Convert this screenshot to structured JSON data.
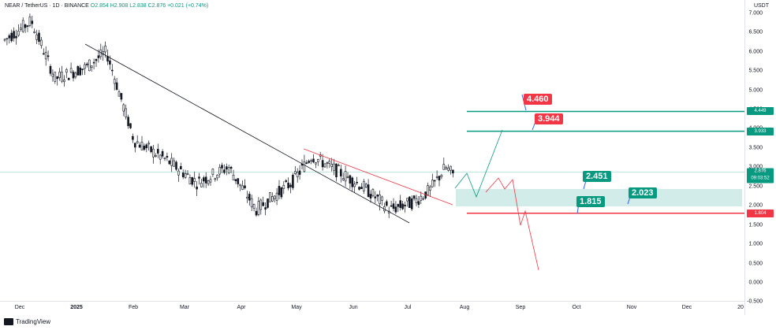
{
  "header": {
    "symbol_text": "NEAR / TetherUS · 1D · BINANCE",
    "ohlc": "O2.854  H2.908  L2.838  C2.876  +0.021 (+0.74%)"
  },
  "price_axis": {
    "currency": "USDT",
    "ticks": [
      "7.000",
      "6.500",
      "6.000",
      "5.500",
      "5.000",
      "4.500",
      "4.000",
      "3.500",
      "3.000",
      "2.500",
      "2.000",
      "1.500",
      "1.000",
      "0.500",
      "0.000",
      "-0.500"
    ],
    "current_price": "2.876",
    "countdown": "09:03:52",
    "level_tags": [
      {
        "value": "4.449",
        "color": "#089981"
      },
      {
        "value": "3.933",
        "color": "#089981"
      },
      {
        "value": "1.804",
        "color": "#f23645"
      }
    ]
  },
  "time_axis": {
    "ticks": [
      "Dec",
      "2025",
      "Feb",
      "Mar",
      "Apr",
      "May",
      "Jun",
      "Jul",
      "Aug",
      "Sep",
      "Oct",
      "Nov",
      "Dec",
      "20"
    ]
  },
  "callouts": {
    "target_high": "4.460",
    "target_mid": "3.944",
    "zone_top": "2.451",
    "zone_bottom_left": "1.815",
    "zone_bottom_right": "2.023"
  },
  "branding": {
    "logo_text": "TradingView"
  },
  "colors": {
    "up": "#089981",
    "down": "#f23645",
    "candle": "#131722",
    "trendline": "#131722",
    "zone_fill": "#b2dfdb",
    "bull_path": "#089981",
    "bear_path": "#f23645"
  }
}
